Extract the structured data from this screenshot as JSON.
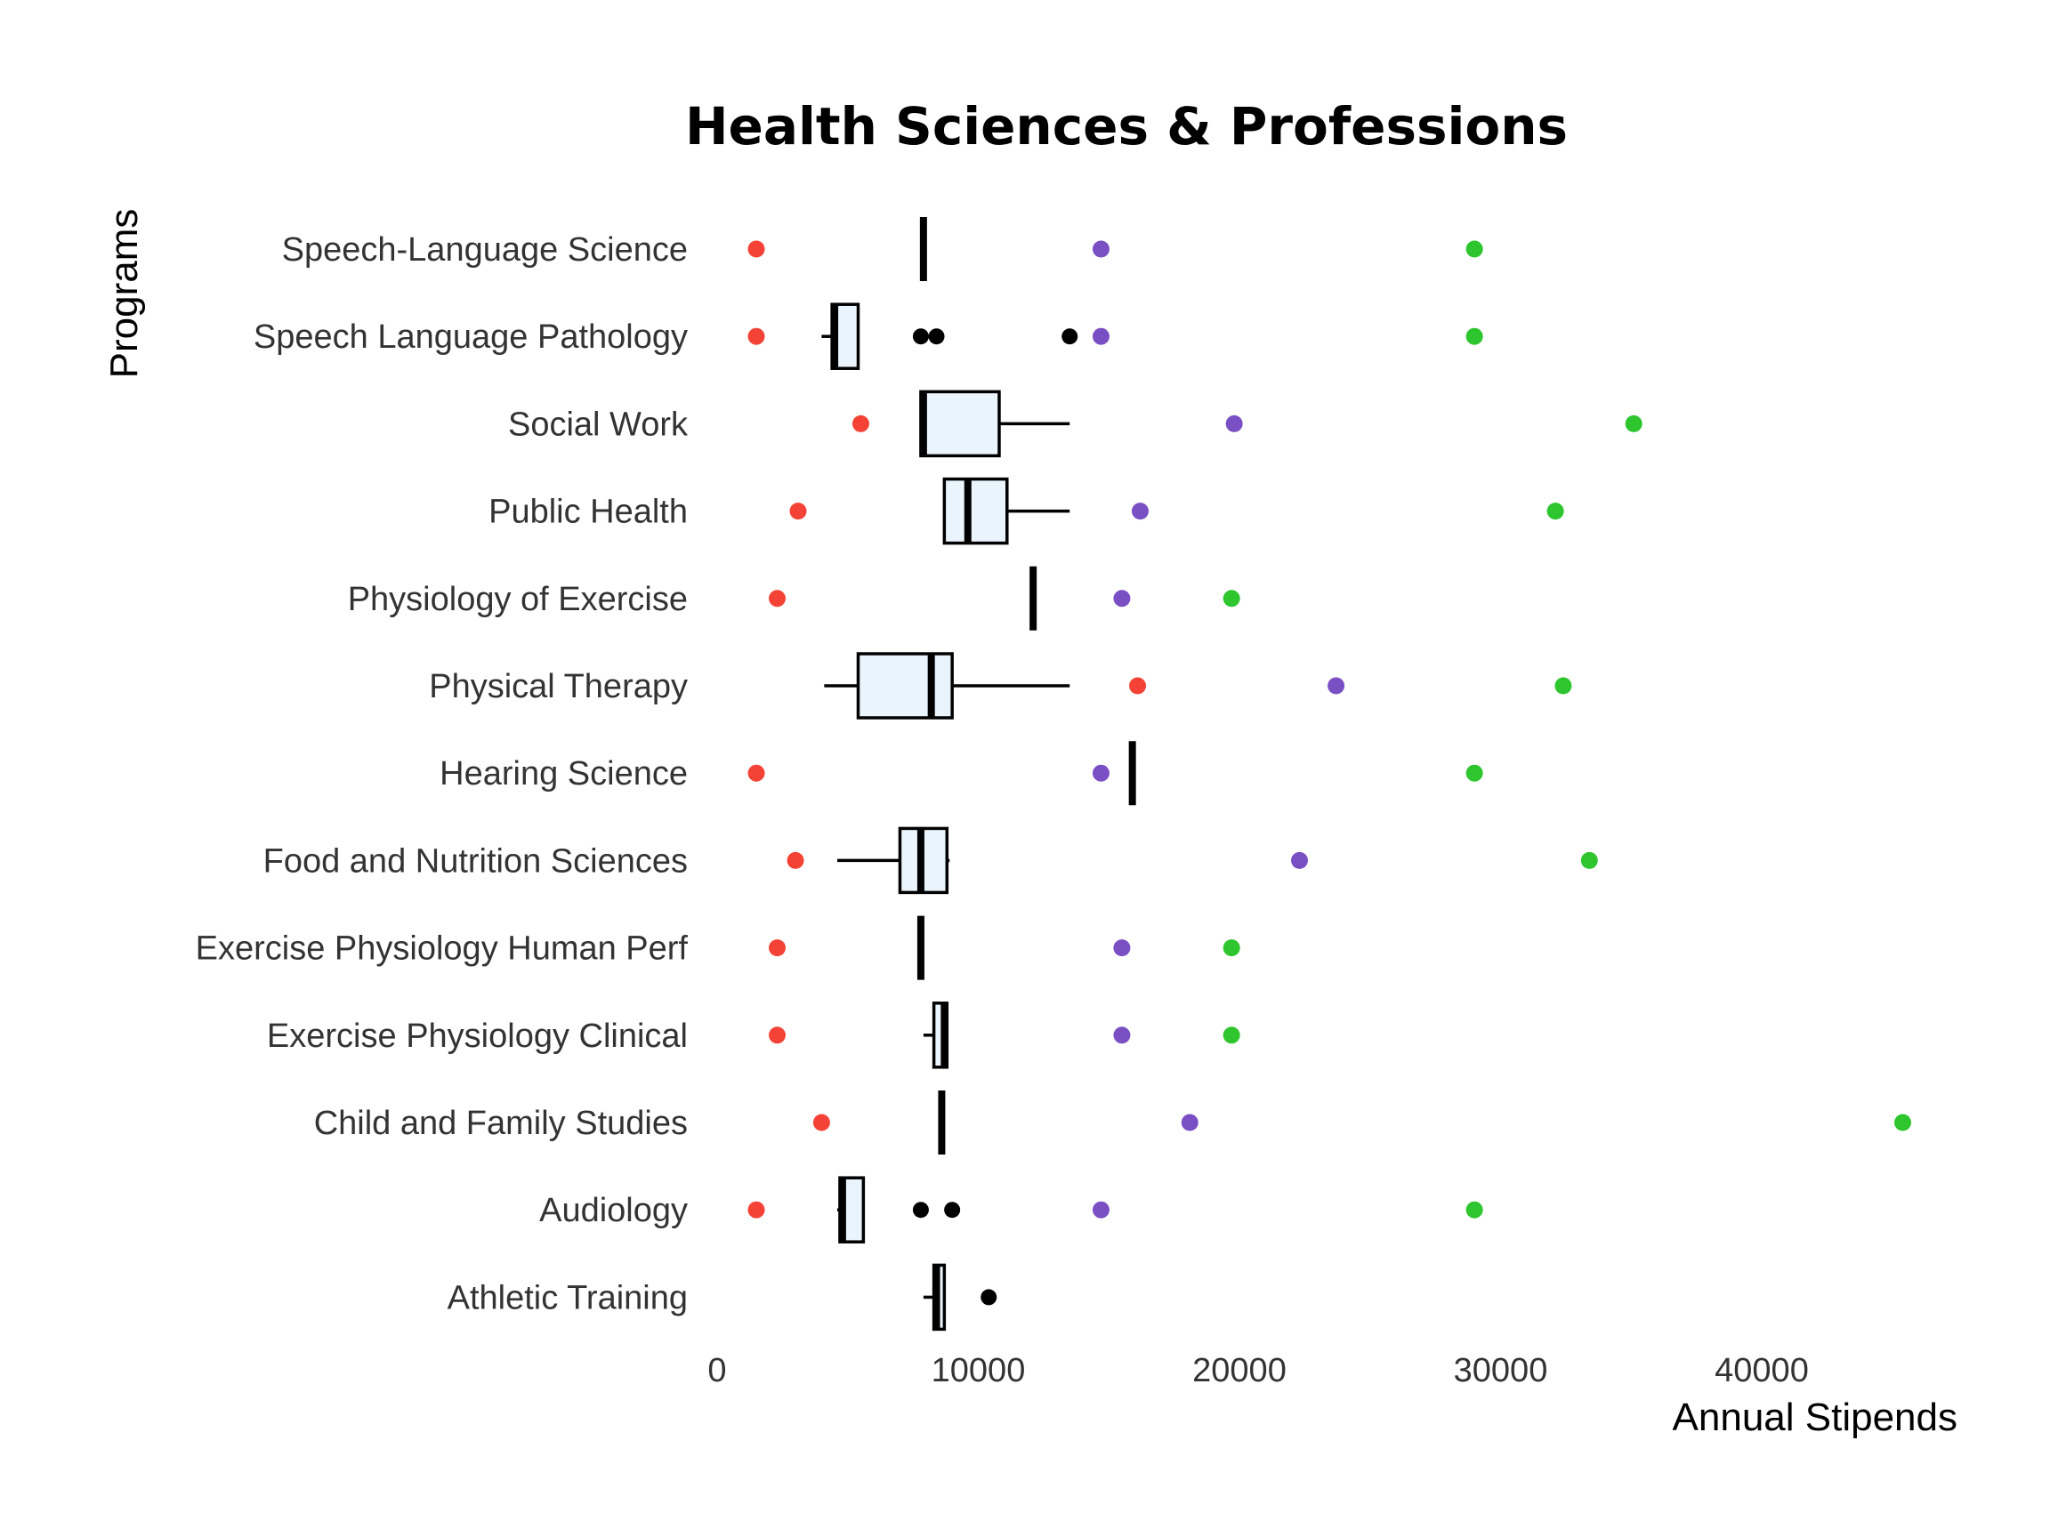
{
  "chart_data": {
    "type": "box",
    "title": "Health Sciences & Professions",
    "xlabel": "Annual Stipends",
    "ylabel": "Programs",
    "xlim": [
      0,
      46000
    ],
    "xticks": [
      0,
      10000,
      20000,
      30000,
      40000
    ],
    "grid": false,
    "legend": "none",
    "colors": {
      "box_fill": "#eaf4fd",
      "box_stroke": "#000000",
      "low_point": "#f44336",
      "mid_point": "#7a4fc4",
      "high_point": "#2ec52e",
      "outlier": "#000000"
    },
    "categories": [
      "Speech-Language Science",
      "Speech Language Pathology",
      "Social Work",
      "Public Health",
      "Physiology of Exercise",
      "Physical Therapy",
      "Hearing Science",
      "Food and Nutrition Sciences",
      "Exercise Physiology Human Perf",
      "Exercise Physiology Clinical",
      "Child and Family Studies",
      "Audiology",
      "Athletic Training"
    ],
    "boxes": [
      {
        "min": 7900,
        "q1": 7900,
        "median": 7900,
        "q3": 7900,
        "max": 7900,
        "outliers": []
      },
      {
        "min": 4000,
        "q1": 4400,
        "median": 4500,
        "q3": 5400,
        "max": 5400,
        "outliers": [
          7800,
          8400,
          13500
        ]
      },
      {
        "min": 7800,
        "q1": 7800,
        "median": 7900,
        "q3": 10800,
        "max": 13500,
        "outliers": []
      },
      {
        "min": 8700,
        "q1": 8700,
        "median": 9600,
        "q3": 11100,
        "max": 13500,
        "outliers": []
      },
      {
        "min": 12100,
        "q1": 12100,
        "median": 12100,
        "q3": 12100,
        "max": 12100,
        "outliers": []
      },
      {
        "min": 4100,
        "q1": 5400,
        "median": 8200,
        "q3": 9000,
        "max": 13500,
        "outliers": []
      },
      {
        "min": 15900,
        "q1": 15900,
        "median": 15900,
        "q3": 15900,
        "max": 15900,
        "outliers": []
      },
      {
        "min": 4600,
        "q1": 7000,
        "median": 7800,
        "q3": 8800,
        "max": 8900,
        "outliers": []
      },
      {
        "min": 7800,
        "q1": 7800,
        "median": 7800,
        "q3": 7800,
        "max": 7800,
        "outliers": []
      },
      {
        "min": 7900,
        "q1": 8300,
        "median": 8700,
        "q3": 8800,
        "max": 8800,
        "outliers": []
      },
      {
        "min": 8600,
        "q1": 8600,
        "median": 8600,
        "q3": 8600,
        "max": 8600,
        "outliers": []
      },
      {
        "min": 4600,
        "q1": 4700,
        "median": 4800,
        "q3": 5600,
        "max": 5600,
        "outliers": [
          7800,
          9000
        ]
      },
      {
        "min": 7900,
        "q1": 8300,
        "median": 8400,
        "q3": 8700,
        "max": 8700,
        "outliers": [
          10400
        ]
      }
    ],
    "points": [
      {
        "low": 1500,
        "mid": 14700,
        "high": 29000
      },
      {
        "low": 1500,
        "mid": 14700,
        "high": 29000
      },
      {
        "low": 5500,
        "mid": 19800,
        "high": 35100
      },
      {
        "low": 3100,
        "mid": 16200,
        "high": 32100
      },
      {
        "low": 2300,
        "mid": 15500,
        "high": 19700
      },
      {
        "low": 16100,
        "mid": 23700,
        "high": 32400
      },
      {
        "low": 1500,
        "mid": 14700,
        "high": 29000
      },
      {
        "low": 3000,
        "mid": 22300,
        "high": 33400
      },
      {
        "low": 2300,
        "mid": 15500,
        "high": 19700
      },
      {
        "low": 2300,
        "mid": 15500,
        "high": 19700
      },
      {
        "low": 4000,
        "mid": 18100,
        "high": 45400
      },
      {
        "low": 1500,
        "mid": 14700,
        "high": 29000
      },
      {}
    ]
  }
}
